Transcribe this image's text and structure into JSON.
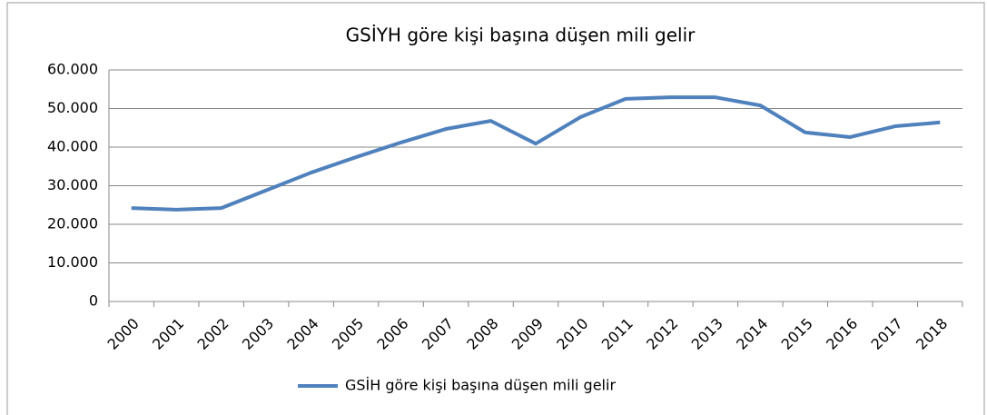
{
  "chart_data": {
    "type": "line",
    "title": "GSİYH göre kişi başına düşen mili gelir",
    "categories": [
      "2000",
      "2001",
      "2002",
      "2003",
      "2004",
      "2005",
      "2006",
      "2007",
      "2008",
      "2009",
      "2010",
      "2011",
      "2012",
      "2013",
      "2014",
      "2015",
      "2016",
      "2017",
      "2018"
    ],
    "series": [
      {
        "name": "GSİH göre kişi başına düşen mili gelir",
        "color": "#4f81bd",
        "values": [
          24200,
          23800,
          24200,
          28800,
          33400,
          37400,
          41200,
          44700,
          46800,
          40900,
          47800,
          52500,
          52900,
          52900,
          50800,
          43800,
          42600,
          45400,
          46400
        ]
      }
    ],
    "ylim": [
      0,
      60000
    ],
    "yticks": [
      0,
      {
        "value": 10000,
        "label": "10.000"
      },
      {
        "value": 20000,
        "label": "20.000"
      },
      {
        "value": 30000,
        "label": "30.000"
      },
      {
        "value": 40000,
        "label": "40.000"
      },
      {
        "value": 50000,
        "label": "50.000"
      },
      {
        "value": 60000,
        "label": "60.000"
      }
    ],
    "grid": true,
    "legend": "bottom"
  }
}
